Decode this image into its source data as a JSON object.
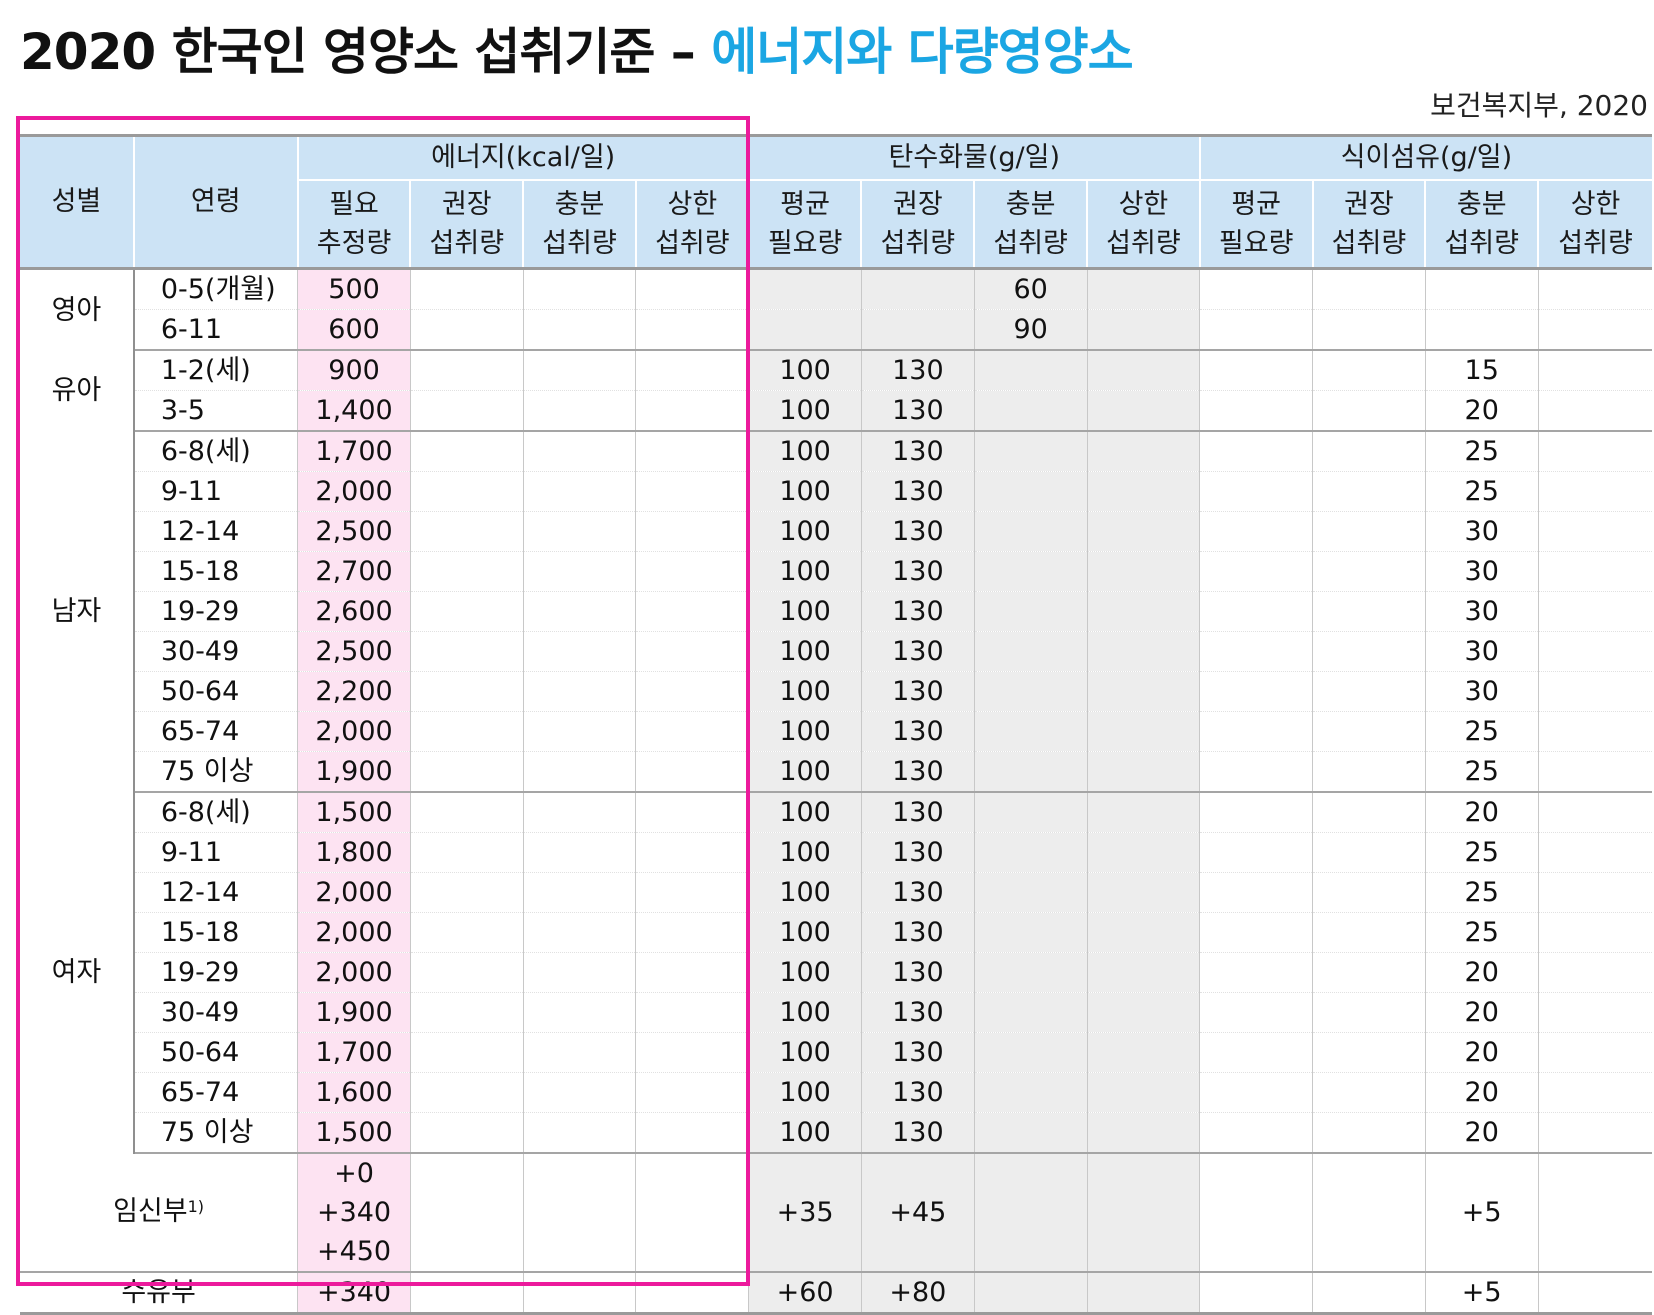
{
  "title": {
    "main": "2020 한국인 영양소 섭취기준 – ",
    "highlight": "에너지와 다량영양소"
  },
  "source": "보건복지부, 2020",
  "colors": {
    "highlight_text": "#1ba6e3",
    "header_bg": "#cce3f5",
    "energy_col_bg": "#fde3f2",
    "gray_col_bg": "#ededed",
    "box_border": "#ec1a9c"
  },
  "header": {
    "sex": "성별",
    "age": "연령",
    "groups": [
      "에너지(kcal/일)",
      "탄수화물(g/일)",
      "식이섬유(g/일)"
    ],
    "sub": [
      [
        "필요",
        "추정량"
      ],
      [
        "권장",
        "섭취량"
      ],
      [
        "충분",
        "섭취량"
      ],
      [
        "상한",
        "섭취량"
      ],
      [
        "평균",
        "필요량"
      ],
      [
        "권장",
        "섭취량"
      ],
      [
        "충분",
        "섭취량"
      ],
      [
        "상한",
        "섭취량"
      ],
      [
        "평균",
        "필요량"
      ],
      [
        "권장",
        "섭취량"
      ],
      [
        "충분",
        "섭취량"
      ],
      [
        "상한",
        "섭취량"
      ]
    ]
  },
  "groups": [
    {
      "sex": "영아",
      "rows": [
        {
          "age": "0-5(개월)",
          "v": [
            "500",
            "",
            "",
            "",
            "",
            "",
            "60",
            "",
            "",
            "",
            "",
            ""
          ]
        },
        {
          "age": "6-11",
          "v": [
            "600",
            "",
            "",
            "",
            "",
            "",
            "90",
            "",
            "",
            "",
            "",
            ""
          ]
        }
      ]
    },
    {
      "sex": "유아",
      "rows": [
        {
          "age": "1-2(세)",
          "v": [
            "900",
            "",
            "",
            "",
            "100",
            "130",
            "",
            "",
            "",
            "",
            "15",
            ""
          ]
        },
        {
          "age": "3-5",
          "v": [
            "1,400",
            "",
            "",
            "",
            "100",
            "130",
            "",
            "",
            "",
            "",
            "20",
            ""
          ]
        }
      ]
    },
    {
      "sex": "남자",
      "rows": [
        {
          "age": "6-8(세)",
          "v": [
            "1,700",
            "",
            "",
            "",
            "100",
            "130",
            "",
            "",
            "",
            "",
            "25",
            ""
          ]
        },
        {
          "age": "9-11",
          "v": [
            "2,000",
            "",
            "",
            "",
            "100",
            "130",
            "",
            "",
            "",
            "",
            "25",
            ""
          ]
        },
        {
          "age": "12-14",
          "v": [
            "2,500",
            "",
            "",
            "",
            "100",
            "130",
            "",
            "",
            "",
            "",
            "30",
            ""
          ]
        },
        {
          "age": "15-18",
          "v": [
            "2,700",
            "",
            "",
            "",
            "100",
            "130",
            "",
            "",
            "",
            "",
            "30",
            ""
          ]
        },
        {
          "age": "19-29",
          "v": [
            "2,600",
            "",
            "",
            "",
            "100",
            "130",
            "",
            "",
            "",
            "",
            "30",
            ""
          ]
        },
        {
          "age": "30-49",
          "v": [
            "2,500",
            "",
            "",
            "",
            "100",
            "130",
            "",
            "",
            "",
            "",
            "30",
            ""
          ]
        },
        {
          "age": "50-64",
          "v": [
            "2,200",
            "",
            "",
            "",
            "100",
            "130",
            "",
            "",
            "",
            "",
            "30",
            ""
          ]
        },
        {
          "age": "65-74",
          "v": [
            "2,000",
            "",
            "",
            "",
            "100",
            "130",
            "",
            "",
            "",
            "",
            "25",
            ""
          ]
        },
        {
          "age": "75 이상",
          "v": [
            "1,900",
            "",
            "",
            "",
            "100",
            "130",
            "",
            "",
            "",
            "",
            "25",
            ""
          ]
        }
      ]
    },
    {
      "sex": "여자",
      "rows": [
        {
          "age": "6-8(세)",
          "v": [
            "1,500",
            "",
            "",
            "",
            "100",
            "130",
            "",
            "",
            "",
            "",
            "20",
            ""
          ]
        },
        {
          "age": "9-11",
          "v": [
            "1,800",
            "",
            "",
            "",
            "100",
            "130",
            "",
            "",
            "",
            "",
            "25",
            ""
          ]
        },
        {
          "age": "12-14",
          "v": [
            "2,000",
            "",
            "",
            "",
            "100",
            "130",
            "",
            "",
            "",
            "",
            "25",
            ""
          ]
        },
        {
          "age": "15-18",
          "v": [
            "2,000",
            "",
            "",
            "",
            "100",
            "130",
            "",
            "",
            "",
            "",
            "25",
            ""
          ]
        },
        {
          "age": "19-29",
          "v": [
            "2,000",
            "",
            "",
            "",
            "100",
            "130",
            "",
            "",
            "",
            "",
            "20",
            ""
          ]
        },
        {
          "age": "30-49",
          "v": [
            "1,900",
            "",
            "",
            "",
            "100",
            "130",
            "",
            "",
            "",
            "",
            "20",
            ""
          ]
        },
        {
          "age": "50-64",
          "v": [
            "1,700",
            "",
            "",
            "",
            "100",
            "130",
            "",
            "",
            "",
            "",
            "20",
            ""
          ]
        },
        {
          "age": "65-74",
          "v": [
            "1,600",
            "",
            "",
            "",
            "100",
            "130",
            "",
            "",
            "",
            "",
            "20",
            ""
          ]
        },
        {
          "age": "75 이상",
          "v": [
            "1,500",
            "",
            "",
            "",
            "100",
            "130",
            "",
            "",
            "",
            "",
            "20",
            ""
          ]
        }
      ]
    }
  ],
  "pregnant": {
    "label": "임신부",
    "sup": "1)",
    "energy": [
      "+0",
      "+340",
      "+450"
    ],
    "v": [
      "",
      "",
      "",
      "+35",
      "+45",
      "",
      "",
      "",
      "",
      "+5",
      ""
    ]
  },
  "lactating": {
    "label": "수유부",
    "v": [
      "+340",
      "",
      "",
      "",
      "+60",
      "+80",
      "",
      "",
      "",
      "",
      "+5",
      ""
    ]
  }
}
